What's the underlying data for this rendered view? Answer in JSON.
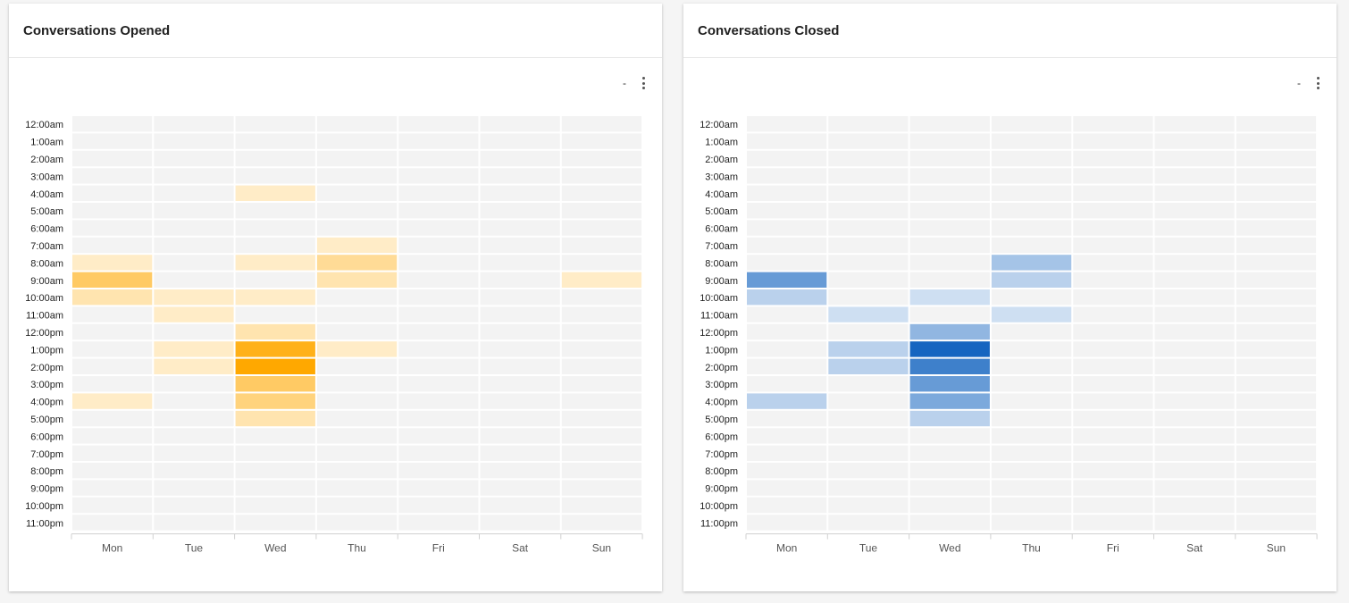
{
  "chart_data": [
    {
      "type": "heatmap",
      "title": "Conversations Opened",
      "color": "#ffa800",
      "empty_color": "#f3f3f3",
      "x_categories": [
        "Mon",
        "Tue",
        "Wed",
        "Thu",
        "Fri",
        "Sat",
        "Sun"
      ],
      "y_categories": [
        "12:00am",
        "1:00am",
        "2:00am",
        "3:00am",
        "4:00am",
        "5:00am",
        "6:00am",
        "7:00am",
        "8:00am",
        "9:00am",
        "10:00am",
        "11:00am",
        "12:00pm",
        "1:00pm",
        "2:00pm",
        "3:00pm",
        "4:00pm",
        "5:00pm",
        "6:00pm",
        "7:00pm",
        "8:00pm",
        "9:00pm",
        "10:00pm",
        "11:00pm"
      ],
      "values": [
        [
          0,
          0,
          0,
          0,
          0,
          0,
          0
        ],
        [
          0,
          0,
          0,
          0,
          0,
          0,
          0
        ],
        [
          0,
          0,
          0,
          0,
          0,
          0,
          0
        ],
        [
          0,
          0,
          0,
          0,
          0,
          0,
          0
        ],
        [
          0,
          0,
          1,
          0,
          0,
          0,
          0
        ],
        [
          0,
          0,
          0,
          0,
          0,
          0,
          0
        ],
        [
          0,
          0,
          0,
          0,
          0,
          0,
          0
        ],
        [
          0,
          0,
          0,
          1,
          0,
          0,
          0
        ],
        [
          1,
          0,
          1,
          3,
          0,
          0,
          0
        ],
        [
          5,
          0,
          0,
          2,
          0,
          0,
          1
        ],
        [
          2,
          1,
          1,
          0,
          0,
          0,
          0
        ],
        [
          0,
          1,
          0,
          0,
          0,
          0,
          0
        ],
        [
          0,
          0,
          2,
          0,
          0,
          0,
          0
        ],
        [
          0,
          1,
          8,
          1,
          0,
          0,
          0
        ],
        [
          0,
          1,
          9,
          0,
          0,
          0,
          0
        ],
        [
          0,
          0,
          5,
          0,
          0,
          0,
          0
        ],
        [
          1,
          0,
          4,
          0,
          0,
          0,
          0
        ],
        [
          0,
          0,
          2,
          0,
          0,
          0,
          0
        ],
        [
          0,
          0,
          0,
          0,
          0,
          0,
          0
        ],
        [
          0,
          0,
          0,
          0,
          0,
          0,
          0
        ],
        [
          0,
          0,
          0,
          0,
          0,
          0,
          0
        ],
        [
          0,
          0,
          0,
          0,
          0,
          0,
          0
        ],
        [
          0,
          0,
          0,
          0,
          0,
          0,
          0
        ],
        [
          0,
          0,
          0,
          0,
          0,
          0,
          0
        ]
      ],
      "max": 9,
      "legend_text": "-"
    },
    {
      "type": "heatmap",
      "title": "Conversations Closed",
      "color": "#1565c0",
      "empty_color": "#f3f3f3",
      "x_categories": [
        "Mon",
        "Tue",
        "Wed",
        "Thu",
        "Fri",
        "Sat",
        "Sun"
      ],
      "y_categories": [
        "12:00am",
        "1:00am",
        "2:00am",
        "3:00am",
        "4:00am",
        "5:00am",
        "6:00am",
        "7:00am",
        "8:00am",
        "9:00am",
        "10:00am",
        "11:00am",
        "12:00pm",
        "1:00pm",
        "2:00pm",
        "3:00pm",
        "4:00pm",
        "5:00pm",
        "6:00pm",
        "7:00pm",
        "8:00pm",
        "9:00pm",
        "10:00pm",
        "11:00pm"
      ],
      "values": [
        [
          0,
          0,
          0,
          0,
          0,
          0,
          0
        ],
        [
          0,
          0,
          0,
          0,
          0,
          0,
          0
        ],
        [
          0,
          0,
          0,
          0,
          0,
          0,
          0
        ],
        [
          0,
          0,
          0,
          0,
          0,
          0,
          0
        ],
        [
          0,
          0,
          0,
          0,
          0,
          0,
          0
        ],
        [
          0,
          0,
          0,
          0,
          0,
          0,
          0
        ],
        [
          0,
          0,
          0,
          0,
          0,
          0,
          0
        ],
        [
          0,
          0,
          0,
          0,
          0,
          0,
          0
        ],
        [
          0,
          0,
          0,
          3,
          0,
          0,
          0
        ],
        [
          6,
          0,
          0,
          2,
          0,
          0,
          0
        ],
        [
          2,
          0,
          1,
          0,
          0,
          0,
          0
        ],
        [
          0,
          1,
          0,
          1,
          0,
          0,
          0
        ],
        [
          0,
          0,
          4,
          0,
          0,
          0,
          0
        ],
        [
          0,
          2,
          10,
          0,
          0,
          0,
          0
        ],
        [
          0,
          2,
          8,
          0,
          0,
          0,
          0
        ],
        [
          0,
          0,
          6,
          0,
          0,
          0,
          0
        ],
        [
          2,
          0,
          5,
          0,
          0,
          0,
          0
        ],
        [
          0,
          0,
          2,
          0,
          0,
          0,
          0
        ],
        [
          0,
          0,
          0,
          0,
          0,
          0,
          0
        ],
        [
          0,
          0,
          0,
          0,
          0,
          0,
          0
        ],
        [
          0,
          0,
          0,
          0,
          0,
          0,
          0
        ],
        [
          0,
          0,
          0,
          0,
          0,
          0,
          0
        ],
        [
          0,
          0,
          0,
          0,
          0,
          0,
          0
        ],
        [
          0,
          0,
          0,
          0,
          0,
          0,
          0
        ]
      ],
      "max": 10,
      "legend_text": "-"
    }
  ]
}
